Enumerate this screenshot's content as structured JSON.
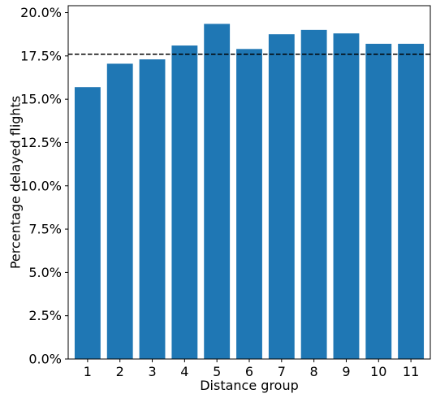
{
  "chart_data": {
    "type": "bar",
    "title": "",
    "xlabel": "Distance group",
    "ylabel": "Percentage delayed flights",
    "categories": [
      "1",
      "2",
      "3",
      "4",
      "5",
      "6",
      "7",
      "8",
      "9",
      "10",
      "11"
    ],
    "values": [
      15.7,
      17.05,
      17.3,
      18.1,
      19.35,
      17.9,
      18.75,
      19.0,
      18.8,
      18.2,
      18.2
    ],
    "ylim": [
      0,
      20.4
    ],
    "yticks": [
      0,
      2.5,
      5,
      7.5,
      10,
      12.5,
      15,
      17.5,
      20
    ],
    "ytick_labels": [
      "0.0%",
      "2.5%",
      "5.0%",
      "7.5%",
      "10.0%",
      "12.5%",
      "15.0%",
      "17.5%",
      "20.0%"
    ],
    "reference_line": {
      "value": 17.6,
      "style": "dashed",
      "color": "#000000"
    },
    "bar_color": "#1f77b4",
    "grid": false,
    "legend": "none"
  }
}
